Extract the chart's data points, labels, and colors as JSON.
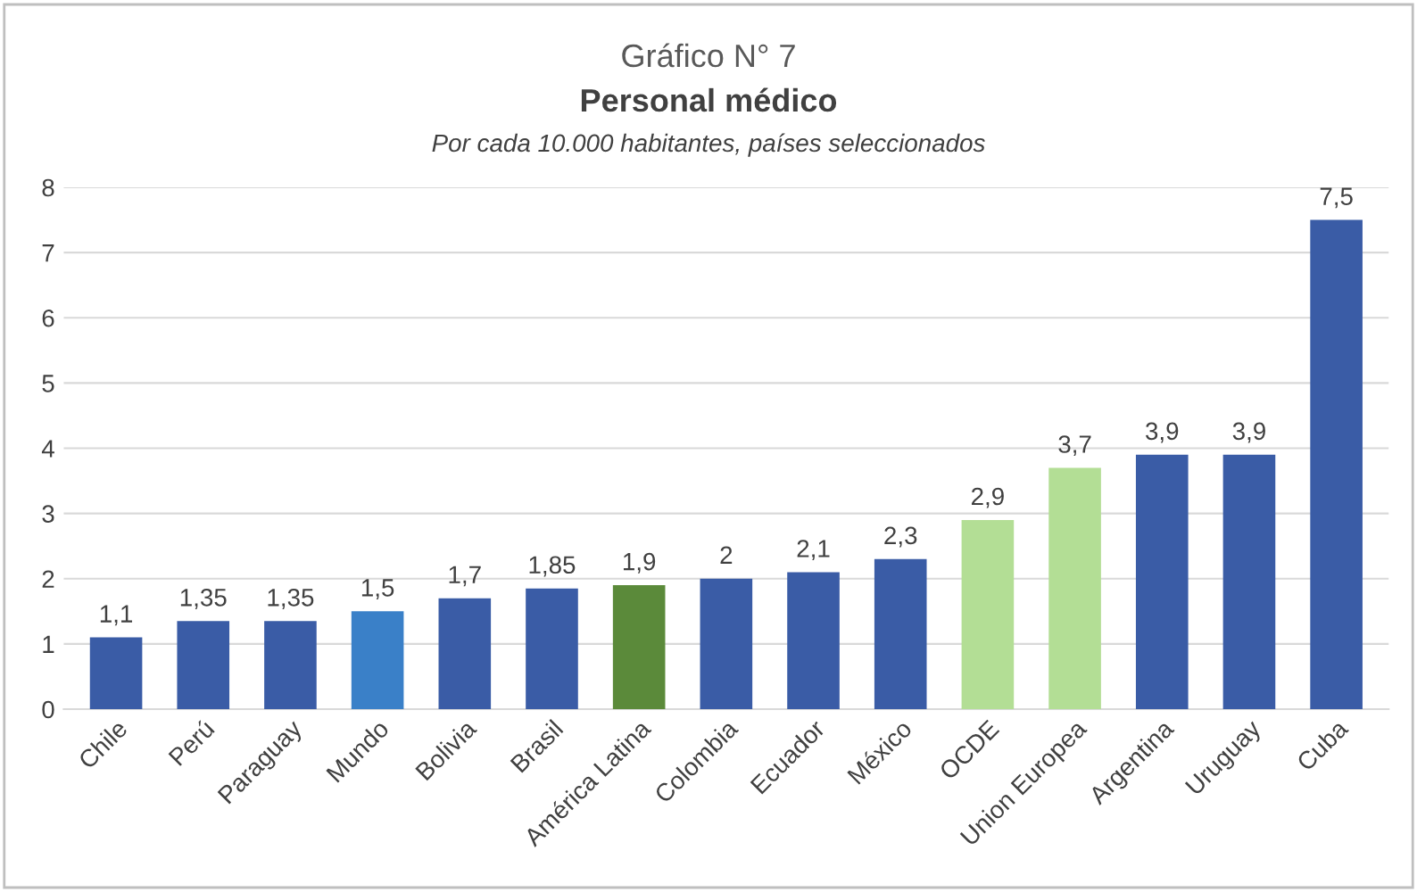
{
  "chart_data": {
    "type": "bar",
    "title": "Gráfico N° 7",
    "subtitle": "Personal médico",
    "annotations": [
      "Por cada 10.000 habitantes, países seleccionados"
    ],
    "categories": [
      "Chile",
      "Perú",
      "Paraguay",
      "Mundo",
      "Bolivia",
      "Brasil",
      "América Latina",
      "Colombia",
      "Ecuador",
      "México",
      "OCDE",
      "Union Europea",
      "Argentina",
      "Uruguay",
      "Cuba"
    ],
    "values": [
      1.1,
      1.35,
      1.35,
      1.5,
      1.7,
      1.85,
      1.9,
      2,
      2.1,
      2.3,
      2.9,
      3.7,
      3.9,
      3.9,
      7.5
    ],
    "value_labels": [
      "1,1",
      "1,35",
      "1,35",
      "1,5",
      "1,7",
      "1,85",
      "1,9",
      "2",
      "2,1",
      "2,3",
      "2,9",
      "3,7",
      "3,9",
      "3,9",
      "7,5"
    ],
    "colors": [
      "#3a5ca6",
      "#3a5ca6",
      "#3a5ca6",
      "#3a80c8",
      "#3a5ca6",
      "#3a5ca6",
      "#5b8a3a",
      "#3a5ca6",
      "#3a5ca6",
      "#3a5ca6",
      "#b3de95",
      "#b3de95",
      "#3a5ca6",
      "#3a5ca6",
      "#3a5ca6"
    ],
    "ylim": [
      0,
      8
    ],
    "yticks": [
      0,
      1,
      2,
      3,
      4,
      5,
      6,
      7,
      8
    ],
    "grid": "y",
    "legend": false
  }
}
